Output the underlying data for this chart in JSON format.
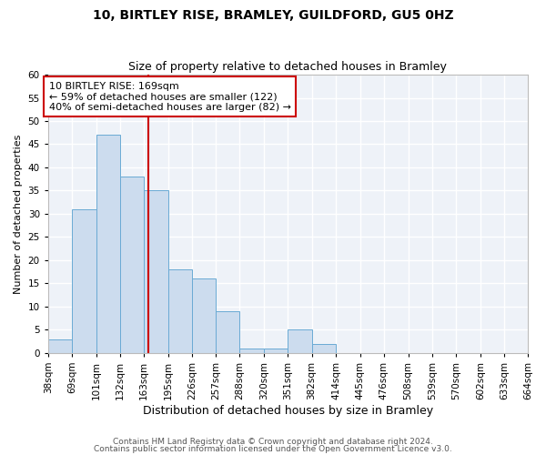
{
  "title1": "10, BIRTLEY RISE, BRAMLEY, GUILDFORD, GU5 0HZ",
  "title2": "Size of property relative to detached houses in Bramley",
  "xlabel": "Distribution of detached houses by size in Bramley",
  "ylabel": "Number of detached properties",
  "bin_edges": [
    38,
    69,
    101,
    132,
    163,
    195,
    226,
    257,
    288,
    320,
    351,
    382,
    414,
    445,
    476,
    508,
    539,
    570,
    602,
    633,
    664
  ],
  "bar_heights": [
    3,
    31,
    47,
    38,
    35,
    18,
    16,
    9,
    1,
    1,
    5,
    2,
    0,
    0,
    0,
    0,
    0,
    0,
    0,
    0
  ],
  "bar_facecolor": "#ccdcee",
  "bar_edgecolor": "#6aaad4",
  "vline_x": 169,
  "vline_color": "#cc0000",
  "ylim": [
    0,
    60
  ],
  "yticks": [
    0,
    5,
    10,
    15,
    20,
    25,
    30,
    35,
    40,
    45,
    50,
    55,
    60
  ],
  "annotation_line1": "10 BIRTLEY RISE: 169sqm",
  "annotation_line2": "← 59% of detached houses are smaller (122)",
  "annotation_line3": "40% of semi-detached houses are larger (82) →",
  "annotation_box_color": "#cc0000",
  "footer1": "Contains HM Land Registry data © Crown copyright and database right 2024.",
  "footer2": "Contains public sector information licensed under the Open Government Licence v3.0.",
  "bg_color": "#eef2f8",
  "grid_color": "#ffffff",
  "title1_fontsize": 10,
  "title2_fontsize": 9,
  "xlabel_fontsize": 9,
  "ylabel_fontsize": 8,
  "tick_fontsize": 7.5,
  "annotation_fontsize": 8,
  "footer_fontsize": 6.5
}
